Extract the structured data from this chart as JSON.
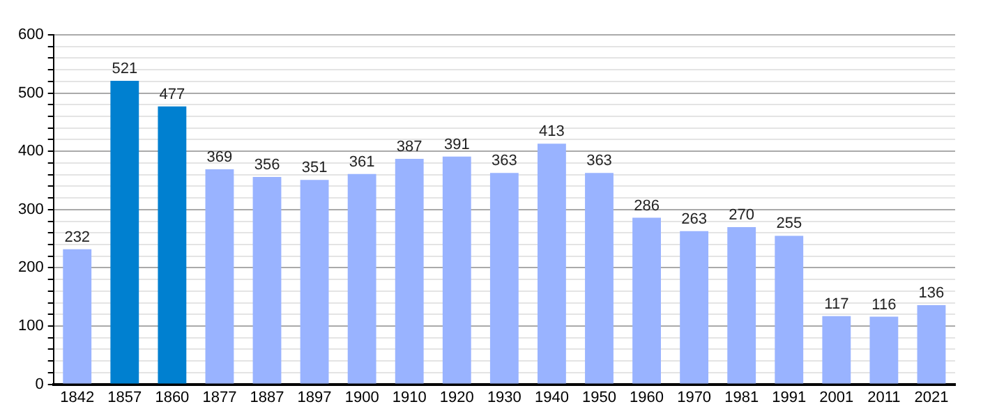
{
  "chart_data": {
    "type": "bar",
    "categories": [
      "1842",
      "1857",
      "1860",
      "1877",
      "1887",
      "1897",
      "1900",
      "1910",
      "1920",
      "1930",
      "1940",
      "1950",
      "1960",
      "1970",
      "1981",
      "1991",
      "2001",
      "2011",
      "2021"
    ],
    "values": [
      232,
      521,
      477,
      369,
      356,
      351,
      361,
      387,
      391,
      363,
      413,
      363,
      286,
      263,
      270,
      255,
      117,
      116,
      136
    ],
    "colors": [
      "#99b3ff",
      "#0080d0",
      "#0080d0",
      "#99b3ff",
      "#99b3ff",
      "#99b3ff",
      "#99b3ff",
      "#99b3ff",
      "#99b3ff",
      "#99b3ff",
      "#99b3ff",
      "#99b3ff",
      "#99b3ff",
      "#99b3ff",
      "#99b3ff",
      "#99b3ff",
      "#99b3ff",
      "#99b3ff",
      "#99b3ff"
    ],
    "ylim": [
      0,
      600
    ],
    "yticks": [
      0,
      {
        "value": 20,
        "label": null
      },
      {
        "value": 40,
        "label": null
      },
      {
        "value": 60,
        "label": null
      },
      {
        "value": 80,
        "label": null
      },
      100,
      {
        "value": 120,
        "label": null
      },
      {
        "value": 140,
        "label": null
      },
      {
        "value": 160,
        "label": null
      },
      {
        "value": 180,
        "label": null
      },
      200,
      {
        "value": 220,
        "label": null
      },
      {
        "value": 240,
        "label": null
      },
      {
        "value": 260,
        "label": null
      },
      {
        "value": 280,
        "label": null
      },
      300,
      {
        "value": 320,
        "label": null
      },
      {
        "value": 340,
        "label": null
      },
      {
        "value": 360,
        "label": null
      },
      {
        "value": 380,
        "label": null
      },
      400,
      {
        "value": 420,
        "label": null
      },
      {
        "value": 440,
        "label": null
      },
      {
        "value": 460,
        "label": null
      },
      {
        "value": 480,
        "label": null
      },
      500,
      {
        "value": 520,
        "label": null
      },
      {
        "value": 540,
        "label": null
      },
      {
        "value": 560,
        "label": null
      },
      {
        "value": 580,
        "label": null
      },
      600
    ],
    "grid": "y",
    "data_labels": true
  }
}
